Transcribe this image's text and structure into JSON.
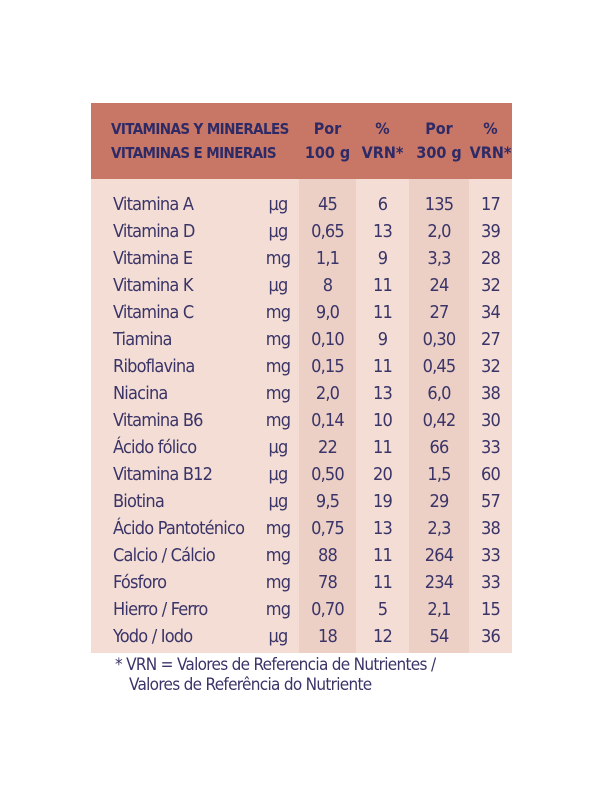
{
  "header": {
    "title_es": "VITAMINAS Y MINERALES",
    "title_pt": "VITAMINAS E MINERAIS",
    "col1_line1": "Por",
    "col1_line2": "100 g",
    "col2_line1": "%",
    "col2_line2": "VRN*",
    "col3_line1": "Por",
    "col3_line2": "300 g",
    "col4_line1": "%",
    "col4_line2": "VRN*"
  },
  "rows": [
    {
      "name": "Vitamina A",
      "unit": "µg",
      "per100": "45",
      "vrn100": "6",
      "per300": "135",
      "vrn300": "17"
    },
    {
      "name": "Vitamina D",
      "unit": "µg",
      "per100": "0,65",
      "vrn100": "13",
      "per300": "2,0",
      "vrn300": "39"
    },
    {
      "name": "Vitamina E",
      "unit": "mg",
      "per100": "1,1",
      "vrn100": "9",
      "per300": "3,3",
      "vrn300": "28"
    },
    {
      "name": "Vitamina K",
      "unit": "µg",
      "per100": "8",
      "vrn100": "11",
      "per300": "24",
      "vrn300": "32"
    },
    {
      "name": "Vitamina C",
      "unit": "mg",
      "per100": "9,0",
      "vrn100": "11",
      "per300": "27",
      "vrn300": "34"
    },
    {
      "name": "Tiamina",
      "unit": "mg",
      "per100": "0,10",
      "vrn100": "9",
      "per300": "0,30",
      "vrn300": "27"
    },
    {
      "name": "Riboflavina",
      "unit": "mg",
      "per100": "0,15",
      "vrn100": "11",
      "per300": "0,45",
      "vrn300": "32"
    },
    {
      "name": "Niacina",
      "unit": "mg",
      "per100": "2,0",
      "vrn100": "13",
      "per300": "6,0",
      "vrn300": "38"
    },
    {
      "name": "Vitamina B6",
      "unit": "mg",
      "per100": "0,14",
      "vrn100": "10",
      "per300": "0,42",
      "vrn300": "30"
    },
    {
      "name": "Ácido fólico",
      "unit": "µg",
      "per100": "22",
      "vrn100": "11",
      "per300": "66",
      "vrn300": "33"
    },
    {
      "name": "Vitamina B12",
      "unit": "µg",
      "per100": "0,50",
      "vrn100": "20",
      "per300": "1,5",
      "vrn300": "60"
    },
    {
      "name": "Biotina",
      "unit": "µg",
      "per100": "9,5",
      "vrn100": "19",
      "per300": "29",
      "vrn300": "57"
    },
    {
      "name": "Ácido Pantoténico",
      "unit": "mg",
      "per100": "0,75",
      "vrn100": "13",
      "per300": "2,3",
      "vrn300": "38"
    },
    {
      "name": "Calcio / Cálcio",
      "unit": "mg",
      "per100": "88",
      "vrn100": "11",
      "per300": "264",
      "vrn300": "33"
    },
    {
      "name": "Fósforo",
      "unit": "mg",
      "per100": "78",
      "vrn100": "11",
      "per300": "234",
      "vrn300": "33"
    },
    {
      "name": "Hierro / Ferro",
      "unit": "mg",
      "per100": "0,70",
      "vrn100": "5",
      "per300": "2,1",
      "vrn300": "15"
    },
    {
      "name": "Yodo / Iodo",
      "unit": "µg",
      "per100": "18",
      "vrn100": "12",
      "per300": "54",
      "vrn300": "36"
    }
  ],
  "footnote": {
    "line1": "* VRN = Valores de Referencia de Nutrientes /",
    "line2": "Valores de Referência do Nutriente"
  },
  "colors": {
    "header_bg": "#c87766",
    "body_bg": "#f3ddd4",
    "stripe_bg": "#ecd0c6",
    "text": "#3a3468"
  }
}
